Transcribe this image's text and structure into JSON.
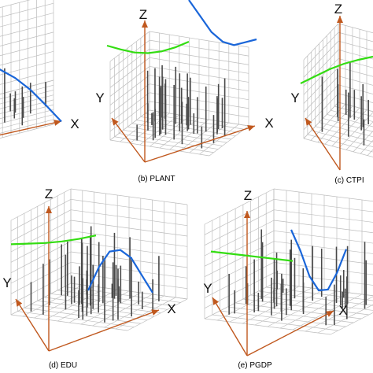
{
  "chart_data": [
    {
      "type": "3d-trend",
      "panel": "a",
      "caption": "",
      "axis_labels": {
        "x": "X",
        "y": "",
        "z": ""
      },
      "trend_x": [
        0.0,
        0.2,
        0.4,
        0.6,
        0.8,
        1.0
      ],
      "trend_x_values": [
        0.62,
        0.58,
        0.5,
        0.38,
        0.22,
        0.05
      ],
      "colors": {
        "x_trend": "#1a66d9",
        "y_trend": "#33dd11",
        "arrow": "#c0581e"
      }
    },
    {
      "type": "3d-trend",
      "panel": "b",
      "caption": "(b) PLANT",
      "axis_labels": {
        "x": "X",
        "y": "Y",
        "z": "Z"
      },
      "trend_y_values": [
        0.62,
        0.58,
        0.55,
        0.55,
        0.58,
        0.64,
        0.72
      ],
      "trend_x_values": [
        0.98,
        0.8,
        0.62,
        0.52,
        0.5,
        0.56,
        0.62
      ],
      "colors": {
        "x_trend": "#1a66d9",
        "y_trend": "#33dd11",
        "arrow": "#c0581e"
      }
    },
    {
      "type": "3d-trend",
      "panel": "c",
      "caption": "(c) CTPI",
      "axis_labels": {
        "x": "",
        "y": "Y",
        "z": "Z"
      },
      "trend_y_values": [
        0.42,
        0.47,
        0.52,
        0.55,
        0.56,
        0.56
      ],
      "colors": {
        "x_trend": "#1a66d9",
        "y_trend": "#33dd11",
        "arrow": "#c0581e"
      }
    },
    {
      "type": "3d-trend",
      "panel": "d",
      "caption": "(d) EDU",
      "axis_labels": {
        "x": "X",
        "y": "Y",
        "z": "Z"
      },
      "trend_y_values": [
        0.58,
        0.57,
        0.56,
        0.56,
        0.57,
        0.59
      ],
      "trend_x_values": [
        0.3,
        0.55,
        0.72,
        0.74,
        0.66,
        0.48,
        0.3
      ],
      "colors": {
        "x_trend": "#1a66d9",
        "y_trend": "#33dd11",
        "arrow": "#c0581e"
      }
    },
    {
      "type": "3d-trend",
      "panel": "e",
      "caption": "(e) PGDP",
      "axis_labels": {
        "x": "X",
        "y": "Y",
        "z": "Z"
      },
      "trend_y_values": [
        0.52,
        0.51,
        0.5,
        0.49,
        0.48,
        0.47
      ],
      "trend_x_values": [
        0.9,
        0.7,
        0.45,
        0.32,
        0.35,
        0.55,
        0.82
      ],
      "colors": {
        "x_trend": "#1a66d9",
        "y_trend": "#33dd11",
        "arrow": "#c0581e"
      }
    }
  ]
}
